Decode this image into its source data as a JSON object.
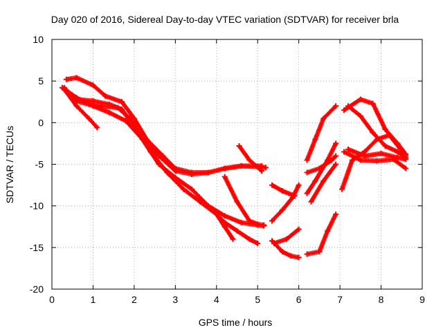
{
  "chart_data": {
    "type": "scatter",
    "title": "Day 020 of 2016, Sidereal Day-to-day VTEC variation (SDTVAR) for receiver brla",
    "xlabel": "GPS time / hours",
    "ylabel": "SDTVAR / TECUs",
    "xlim": [
      0,
      9
    ],
    "ylim": [
      -20,
      10
    ],
    "xticks": [
      0,
      1,
      2,
      3,
      4,
      5,
      6,
      7,
      8,
      9
    ],
    "yticks": [
      -20,
      -15,
      -10,
      -5,
      0,
      5,
      10
    ],
    "grid": true,
    "marker": "+",
    "color": "#ff0000",
    "series": [
      {
        "x": [
          0.25,
          0.6,
          1.0,
          1.4,
          1.8,
          2.2,
          2.6,
          3.0,
          3.4,
          3.8,
          4.2,
          4.6,
          5.1
        ],
        "values": [
          4.2,
          3.0,
          2.0,
          1.2,
          0.2,
          -2.0,
          -4.0,
          -5.8,
          -6.2,
          -6.0,
          -5.5,
          -5.2,
          -5.2
        ]
      },
      {
        "x": [
          0.3,
          0.6,
          1.0,
          1.4,
          1.7,
          2.0,
          2.4,
          2.8,
          3.2,
          3.6,
          4.0,
          4.2,
          4.4
        ],
        "values": [
          4.0,
          2.8,
          2.6,
          2.2,
          1.6,
          -0.5,
          -3.5,
          -6.0,
          -8.0,
          -9.5,
          -11.0,
          -12.5,
          -14.0
        ]
      },
      {
        "x": [
          0.3,
          0.6,
          0.9,
          1.2,
          1.6,
          1.9,
          2.2,
          2.6,
          3.0,
          3.4,
          3.8,
          4.2,
          4.6,
          5.0,
          5.15
        ],
        "values": [
          4.2,
          2.6,
          2.2,
          2.0,
          1.8,
          0.5,
          -2.0,
          -5.0,
          -6.6,
          -8.0,
          -10.0,
          -11.2,
          -12.0,
          -12.3,
          -12.4
        ]
      },
      {
        "x": [
          0.35,
          0.6,
          1.0,
          1.3,
          1.7,
          2.0,
          2.3,
          2.7,
          3.0,
          3.4,
          3.8,
          4.2,
          4.6,
          5.0,
          5.2
        ],
        "values": [
          5.2,
          5.4,
          4.5,
          3.2,
          2.5,
          0.5,
          -2.0,
          -4.0,
          -5.5,
          -6.0,
          -6.0,
          -5.5,
          -5.2,
          -5.3,
          -5.4
        ]
      },
      {
        "x": [
          0.3,
          0.6,
          0.9,
          1.1
        ],
        "values": [
          4.0,
          2.0,
          0.5,
          -0.6
        ]
      },
      {
        "x": [
          4.55,
          4.8,
          5.1
        ],
        "values": [
          -2.8,
          -4.5,
          -5.8
        ]
      },
      {
        "x": [
          4.2,
          4.5,
          4.8,
          5.0,
          5.15
        ],
        "values": [
          -6.5,
          -9.5,
          -11.8,
          -12.2,
          -12.3
        ]
      },
      {
        "x": [
          3.9,
          4.2,
          4.5,
          4.8,
          5.0
        ],
        "values": [
          -10.5,
          -12.0,
          -13.0,
          -14.0,
          -14.5
        ]
      },
      {
        "x": [
          5.35,
          5.6,
          5.85,
          6.0
        ],
        "values": [
          -11.8,
          -10.5,
          -9.0,
          -7.5
        ]
      },
      {
        "x": [
          5.35,
          5.6,
          5.9
        ],
        "values": [
          -7.5,
          -8.2,
          -8.8
        ]
      },
      {
        "x": [
          5.35,
          5.6,
          5.8,
          6.0
        ],
        "values": [
          -14.2,
          -15.5,
          -16.0,
          -16.2
        ]
      },
      {
        "x": [
          5.4,
          5.7,
          6.0
        ],
        "values": [
          -14.5,
          -14.0,
          -12.8
        ]
      },
      {
        "x": [
          6.2,
          6.4,
          6.6,
          6.9
        ],
        "values": [
          -4.5,
          -2.0,
          0.5,
          2.0
        ]
      },
      {
        "x": [
          6.2,
          6.4,
          6.7,
          6.9
        ],
        "values": [
          -8.5,
          -7.0,
          -4.5,
          -2.5
        ]
      },
      {
        "x": [
          6.2,
          6.5,
          6.8,
          6.9
        ],
        "values": [
          -6.0,
          -5.5,
          -4.5,
          -4.0
        ]
      },
      {
        "x": [
          6.2,
          6.5,
          6.7,
          6.9
        ],
        "values": [
          -15.8,
          -15.5,
          -13.0,
          -11.0
        ]
      },
      {
        "x": [
          6.3,
          6.6,
          6.9
        ],
        "values": [
          -9.5,
          -7.0,
          -5.0
        ]
      },
      {
        "x": [
          7.05,
          7.3,
          7.6,
          7.9,
          8.2,
          8.6
        ],
        "values": [
          -8.0,
          -4.5,
          -3.5,
          -2.0,
          -1.5,
          -4.0
        ]
      },
      {
        "x": [
          7.1,
          7.5,
          7.9,
          8.3,
          8.6
        ],
        "values": [
          -3.5,
          -4.5,
          -4.6,
          -4.4,
          -5.5
        ]
      },
      {
        "x": [
          7.1,
          7.5,
          7.8,
          8.1,
          8.4,
          8.6
        ],
        "values": [
          1.5,
          2.8,
          2.3,
          -0.8,
          -2.5,
          -3.8
        ]
      },
      {
        "x": [
          7.2,
          7.5,
          7.8,
          8.1,
          8.4,
          8.6
        ],
        "values": [
          2.0,
          0.8,
          -1.2,
          -2.8,
          -3.5,
          -4.2
        ]
      },
      {
        "x": [
          7.2,
          7.6,
          8.0,
          8.4,
          8.6
        ],
        "values": [
          -3.2,
          -4.0,
          -3.7,
          -4.2,
          -4.4
        ]
      }
    ]
  }
}
